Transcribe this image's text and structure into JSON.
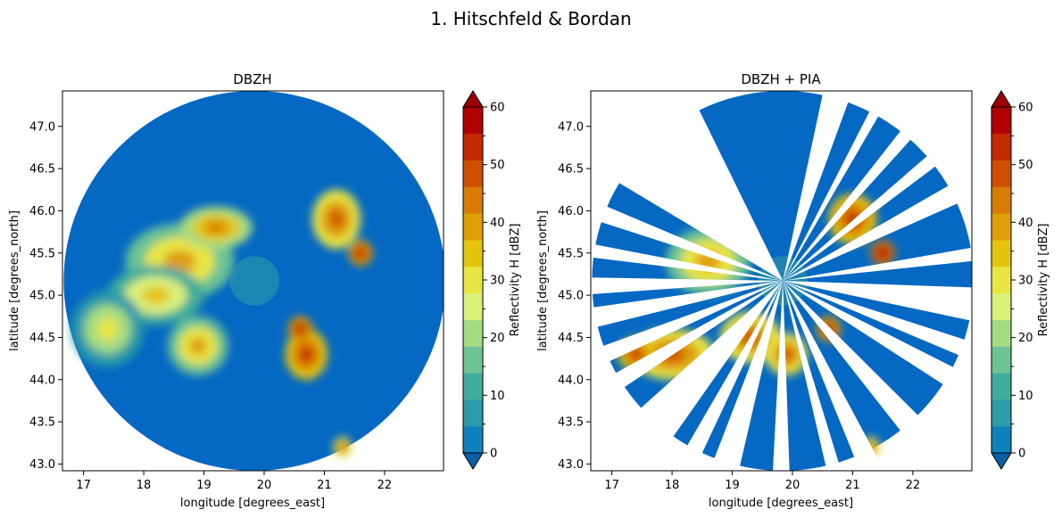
{
  "suptitle": "1. Hitschfeld & Bordan",
  "colorbar": {
    "label": "Reflectivity H [dBZ]",
    "range": [
      0,
      60
    ],
    "tick_labels": [
      "0",
      "10",
      "20",
      "30",
      "40",
      "50",
      "60"
    ],
    "colors": [
      "#0f82bb",
      "#2c9aa8",
      "#41ac9c",
      "#6cc394",
      "#a4dc81",
      "#d9f07a",
      "#e8e544",
      "#e4c40c",
      "#df9f08",
      "#d97c06",
      "#cf4f02",
      "#c22a00",
      "#b00000"
    ],
    "extend": "both"
  },
  "chart_data": [
    {
      "type": "heatmap",
      "title": "DBZH",
      "xlabel": "longitude [degrees_east]",
      "ylabel": "latitude [degrees_north]",
      "xlim": [
        16.65,
        22.98
      ],
      "ylim": [
        42.92,
        47.42
      ],
      "x_ticks": [
        "17",
        "18",
        "19",
        "20",
        "21",
        "22"
      ],
      "y_ticks": [
        "43.0",
        "43.5",
        "44.0",
        "44.5",
        "45.0",
        "45.5",
        "46.0",
        "46.5",
        "47.0"
      ],
      "radar_center": [
        19.84,
        45.17
      ],
      "radar_range_lon": 3.17,
      "radar_range_lat": 2.25,
      "background_color": "#0568c2",
      "colorbar_label": "Reflectivity H [dBZ]",
      "precipitation_cells": [
        {
          "lon": 18.6,
          "lat": 45.4,
          "rx": 0.9,
          "ry": 0.45,
          "dbz": 30
        },
        {
          "lon": 18.2,
          "lat": 45.0,
          "rx": 0.8,
          "ry": 0.35,
          "dbz": 25
        },
        {
          "lon": 17.4,
          "lat": 44.6,
          "rx": 0.6,
          "ry": 0.45,
          "dbz": 20
        },
        {
          "lon": 18.9,
          "lat": 44.4,
          "rx": 0.5,
          "ry": 0.35,
          "dbz": 30
        },
        {
          "lon": 19.2,
          "lat": 45.8,
          "rx": 0.6,
          "ry": 0.25,
          "dbz": 35
        },
        {
          "lon": 20.7,
          "lat": 44.3,
          "rx": 0.35,
          "ry": 0.3,
          "dbz": 45
        },
        {
          "lon": 20.6,
          "lat": 44.6,
          "rx": 0.2,
          "ry": 0.15,
          "dbz": 50
        },
        {
          "lon": 21.2,
          "lat": 45.9,
          "rx": 0.4,
          "ry": 0.35,
          "dbz": 40
        },
        {
          "lon": 21.6,
          "lat": 45.5,
          "rx": 0.2,
          "ry": 0.15,
          "dbz": 50
        },
        {
          "lon": 21.3,
          "lat": 43.2,
          "rx": 0.15,
          "ry": 0.12,
          "dbz": 40
        }
      ]
    },
    {
      "type": "heatmap",
      "title": "DBZH + PIA",
      "xlabel": "longitude [degrees_east]",
      "ylabel": "latitude [degrees_north]",
      "xlim": [
        16.65,
        22.98
      ],
      "ylim": [
        42.92,
        47.42
      ],
      "x_ticks": [
        "17",
        "18",
        "19",
        "20",
        "21",
        "22"
      ],
      "y_ticks": [
        "43.0",
        "43.5",
        "44.0",
        "44.5",
        "45.0",
        "45.5",
        "46.0",
        "46.5",
        "47.0"
      ],
      "radar_center": [
        19.84,
        45.17
      ],
      "radar_range_lon": 3.17,
      "radar_range_lat": 2.25,
      "background_color": "#0568c2",
      "colorbar_label": "Reflectivity H [dBZ]",
      "blocked_azimuth_sectors_deg": [
        [
          12,
          20
        ],
        [
          27,
          30
        ],
        [
          38,
          42
        ],
        [
          49,
          53
        ],
        [
          60,
          66
        ],
        [
          80,
          84
        ],
        [
          92,
          102
        ],
        [
          108,
          113
        ],
        [
          117,
          123
        ],
        [
          135,
          142
        ],
        [
          152,
          158
        ],
        [
          163,
          167
        ],
        [
          178,
          183
        ],
        [
          193,
          201
        ],
        [
          205,
          210
        ],
        [
          215,
          228
        ],
        [
          236,
          241
        ],
        [
          245,
          250
        ],
        [
          256,
          262
        ],
        [
          266,
          271
        ],
        [
          277,
          281
        ],
        [
          288,
          293
        ],
        [
          301,
          334
        ]
      ],
      "precipitation_cells": [
        {
          "lon": 18.6,
          "lat": 45.4,
          "rx": 0.7,
          "ry": 0.4,
          "dbz": 30
        },
        {
          "lon": 18.0,
          "lat": 44.3,
          "rx": 0.7,
          "ry": 0.3,
          "dbz": 40
        },
        {
          "lon": 17.4,
          "lat": 44.3,
          "rx": 0.3,
          "ry": 0.2,
          "dbz": 45
        },
        {
          "lon": 19.3,
          "lat": 44.5,
          "rx": 0.5,
          "ry": 0.3,
          "dbz": 40
        },
        {
          "lon": 19.9,
          "lat": 44.3,
          "rx": 0.35,
          "ry": 0.25,
          "dbz": 40
        },
        {
          "lon": 21.0,
          "lat": 45.9,
          "rx": 0.4,
          "ry": 0.3,
          "dbz": 45
        },
        {
          "lon": 21.5,
          "lat": 45.5,
          "rx": 0.2,
          "ry": 0.15,
          "dbz": 55
        },
        {
          "lon": 20.6,
          "lat": 44.6,
          "rx": 0.2,
          "ry": 0.15,
          "dbz": 50
        },
        {
          "lon": 21.3,
          "lat": 43.2,
          "rx": 0.15,
          "ry": 0.12,
          "dbz": 40
        }
      ]
    }
  ]
}
